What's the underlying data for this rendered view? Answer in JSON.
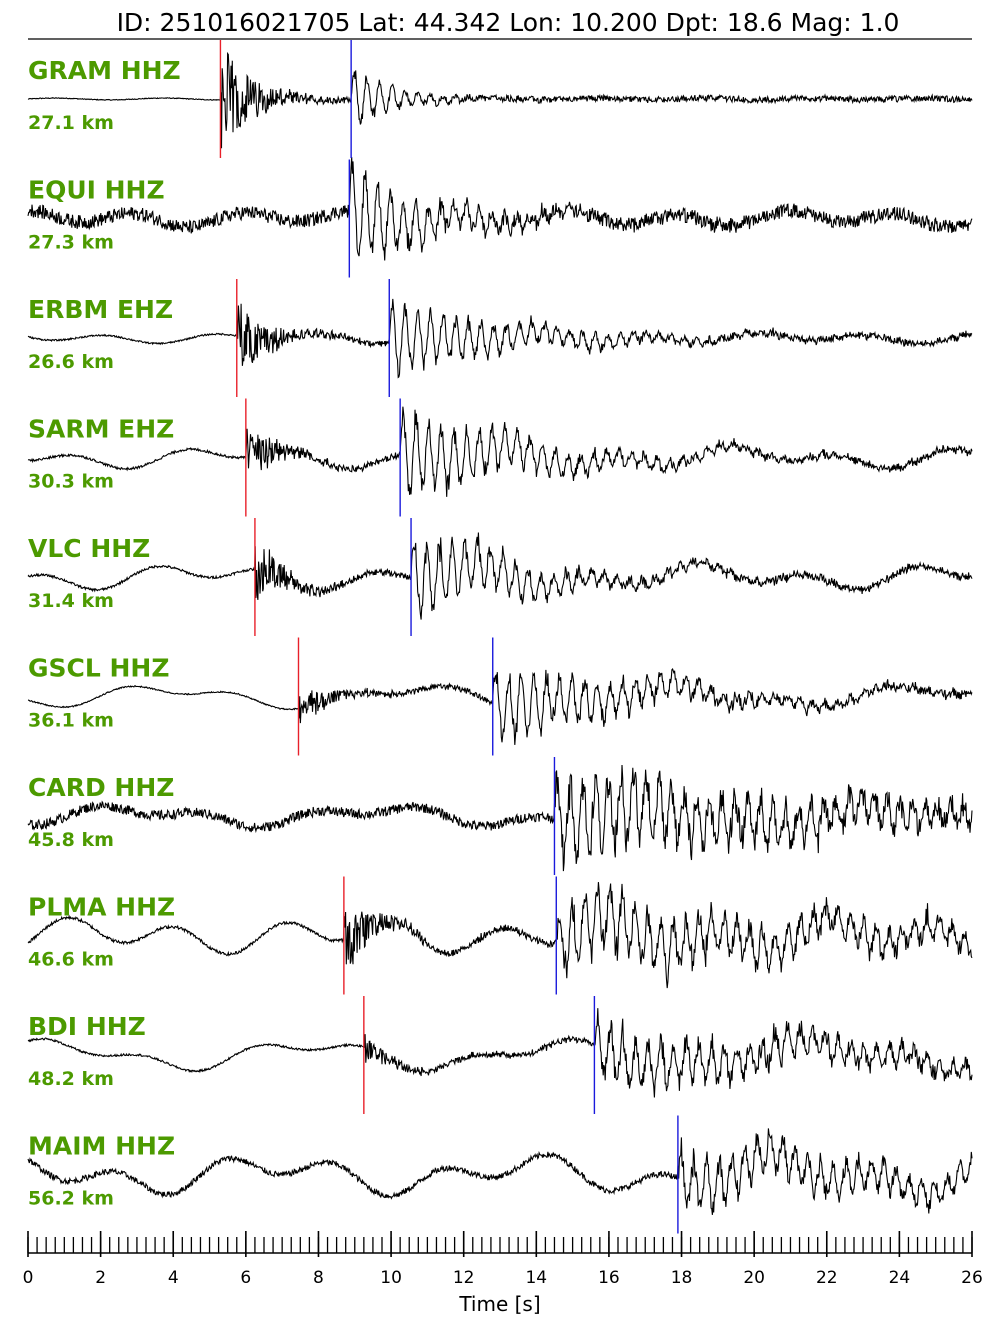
{
  "title": "ID: 251016021705 Lat:  44.342 Lon:  10.200 Dpt:    18.6 Mag:   1.0",
  "colors": {
    "label": "#4c9a00",
    "p_pick": "#e8202a",
    "s_pick": "#1a1adc",
    "trace": "#000000"
  },
  "chart_data": {
    "type": "line",
    "xlabel": "Time [s]",
    "xlim": [
      0,
      26
    ],
    "major_ticks": [
      0,
      2,
      4,
      6,
      8,
      10,
      12,
      14,
      16,
      18,
      20,
      22,
      24,
      26
    ],
    "minor_tick_step": 0.25,
    "traces": [
      {
        "station": "GRAM HHZ",
        "distance": "27.1 km",
        "p": 5.3,
        "s": 8.9
      },
      {
        "station": "EQUI HHZ",
        "distance": "27.3 km",
        "p": null,
        "s": 8.85
      },
      {
        "station": "ERBM EHZ",
        "distance": "26.6 km",
        "p": 5.75,
        "s": 9.95
      },
      {
        "station": "SARM EHZ",
        "distance": "30.3 km",
        "p": 6.0,
        "s": 10.25
      },
      {
        "station": "VLC HHZ",
        "distance": "31.4 km",
        "p": 6.25,
        "s": 10.55
      },
      {
        "station": "GSCL HHZ",
        "distance": "36.1 km",
        "p": 7.45,
        "s": 12.8
      },
      {
        "station": "CARD HHZ",
        "distance": "45.8 km",
        "p": null,
        "s": 14.5
      },
      {
        "station": "PLMA HHZ",
        "distance": "46.6 km",
        "p": 8.7,
        "s": 14.55
      },
      {
        "station": "BDI HHZ",
        "distance": "48.2 km",
        "p": 9.25,
        "s": 15.6
      },
      {
        "station": "MAIM HHZ",
        "distance": "56.2 km",
        "p": null,
        "s": 17.9
      }
    ]
  }
}
